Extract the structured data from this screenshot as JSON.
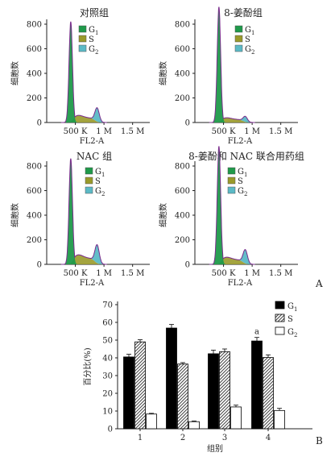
{
  "figure_label_a": "A",
  "figure_label_b": "B",
  "colors": {
    "G1": "#1f9a4a",
    "S": "#9a9a2a",
    "G2": "#5bbac6",
    "fit_curve": "#7a2b8c",
    "bar_G1": "#000000",
    "bar_G2": "#ffffff"
  },
  "histogram_legend": [
    "G1",
    "S",
    "G2"
  ],
  "chart_data": [
    {
      "type": "area",
      "title": "对照组",
      "xlabel": "FL2-A",
      "ylabel": "细胞数",
      "ylim": [
        0,
        800
      ],
      "yticks": [
        0,
        200,
        400,
        600,
        800
      ],
      "xticks": [
        "500 K",
        "1 M",
        "1.5 M"
      ],
      "xlim": [
        0,
        1800000
      ],
      "peaks": {
        "G1": {
          "x": 420000,
          "y": 820
        },
        "G2": {
          "x": 880000,
          "y": 150
        }
      },
      "phases": [
        "G1",
        "S",
        "G2"
      ]
    },
    {
      "type": "area",
      "title": "8-姜酚组",
      "xlabel": "FL2-A",
      "ylabel": "细胞数",
      "ylim": [
        0,
        800
      ],
      "yticks": [
        0,
        200,
        400,
        600,
        800
      ],
      "xticks": [
        "500 K",
        "1 M",
        "1.5 M"
      ],
      "xlim": [
        0,
        1800000
      ],
      "peaks": {
        "G1": {
          "x": 420000,
          "y": 940
        },
        "G2": {
          "x": 880000,
          "y": 70
        }
      },
      "phases": [
        "G1",
        "S",
        "G2"
      ]
    },
    {
      "type": "area",
      "title": "NAC 组",
      "xlabel": "FL2-A",
      "ylabel": "细胞数",
      "ylim": [
        0,
        800
      ],
      "yticks": [
        0,
        200,
        400,
        600,
        800
      ],
      "xticks": [
        "500 K",
        "1 M",
        "1.5 M"
      ],
      "xlim": [
        0,
        1800000
      ],
      "peaks": {
        "G1": {
          "x": 420000,
          "y": 860
        },
        "G2": {
          "x": 880000,
          "y": 200
        }
      },
      "phases": [
        "G1",
        "S",
        "G2"
      ]
    },
    {
      "type": "area",
      "title": "8-姜酚和 NAC 联合用药组",
      "xlabel": "FL2-A",
      "ylabel": "细胞数",
      "ylim": [
        0,
        800
      ],
      "yticks": [
        0,
        200,
        400,
        600,
        800
      ],
      "xticks": [
        "500 K",
        "1 M",
        "1.5 M"
      ],
      "xlim": [
        0,
        1800000
      ],
      "peaks": {
        "G1": {
          "x": 420000,
          "y": 960
        },
        "G2": {
          "x": 880000,
          "y": 150
        }
      },
      "phases": [
        "G1",
        "S",
        "G2"
      ]
    },
    {
      "type": "bar",
      "title": "",
      "xlabel": "组别",
      "ylabel": "百分比(%)",
      "ylim": [
        0,
        70
      ],
      "yticks": [
        0,
        10,
        20,
        30,
        40,
        50,
        60,
        70
      ],
      "categories": [
        "1",
        "2",
        "3",
        "4"
      ],
      "series": [
        {
          "name": "G1",
          "values": [
            40.5,
            56.8,
            42.3,
            49.5
          ],
          "errors": [
            1.5,
            2.0,
            2.0,
            2.0
          ]
        },
        {
          "name": "S",
          "values": [
            49.0,
            36.5,
            43.5,
            40.2
          ],
          "errors": [
            1.2,
            0.8,
            1.5,
            1.5
          ]
        },
        {
          "name": "G2",
          "values": [
            8.3,
            4.0,
            12.3,
            10.3
          ],
          "errors": [
            0.4,
            0.4,
            1.0,
            1.2
          ]
        }
      ],
      "annotations": [
        {
          "category": "4",
          "series": "G1",
          "text": "a"
        }
      ],
      "legend_position": "top-right"
    }
  ]
}
